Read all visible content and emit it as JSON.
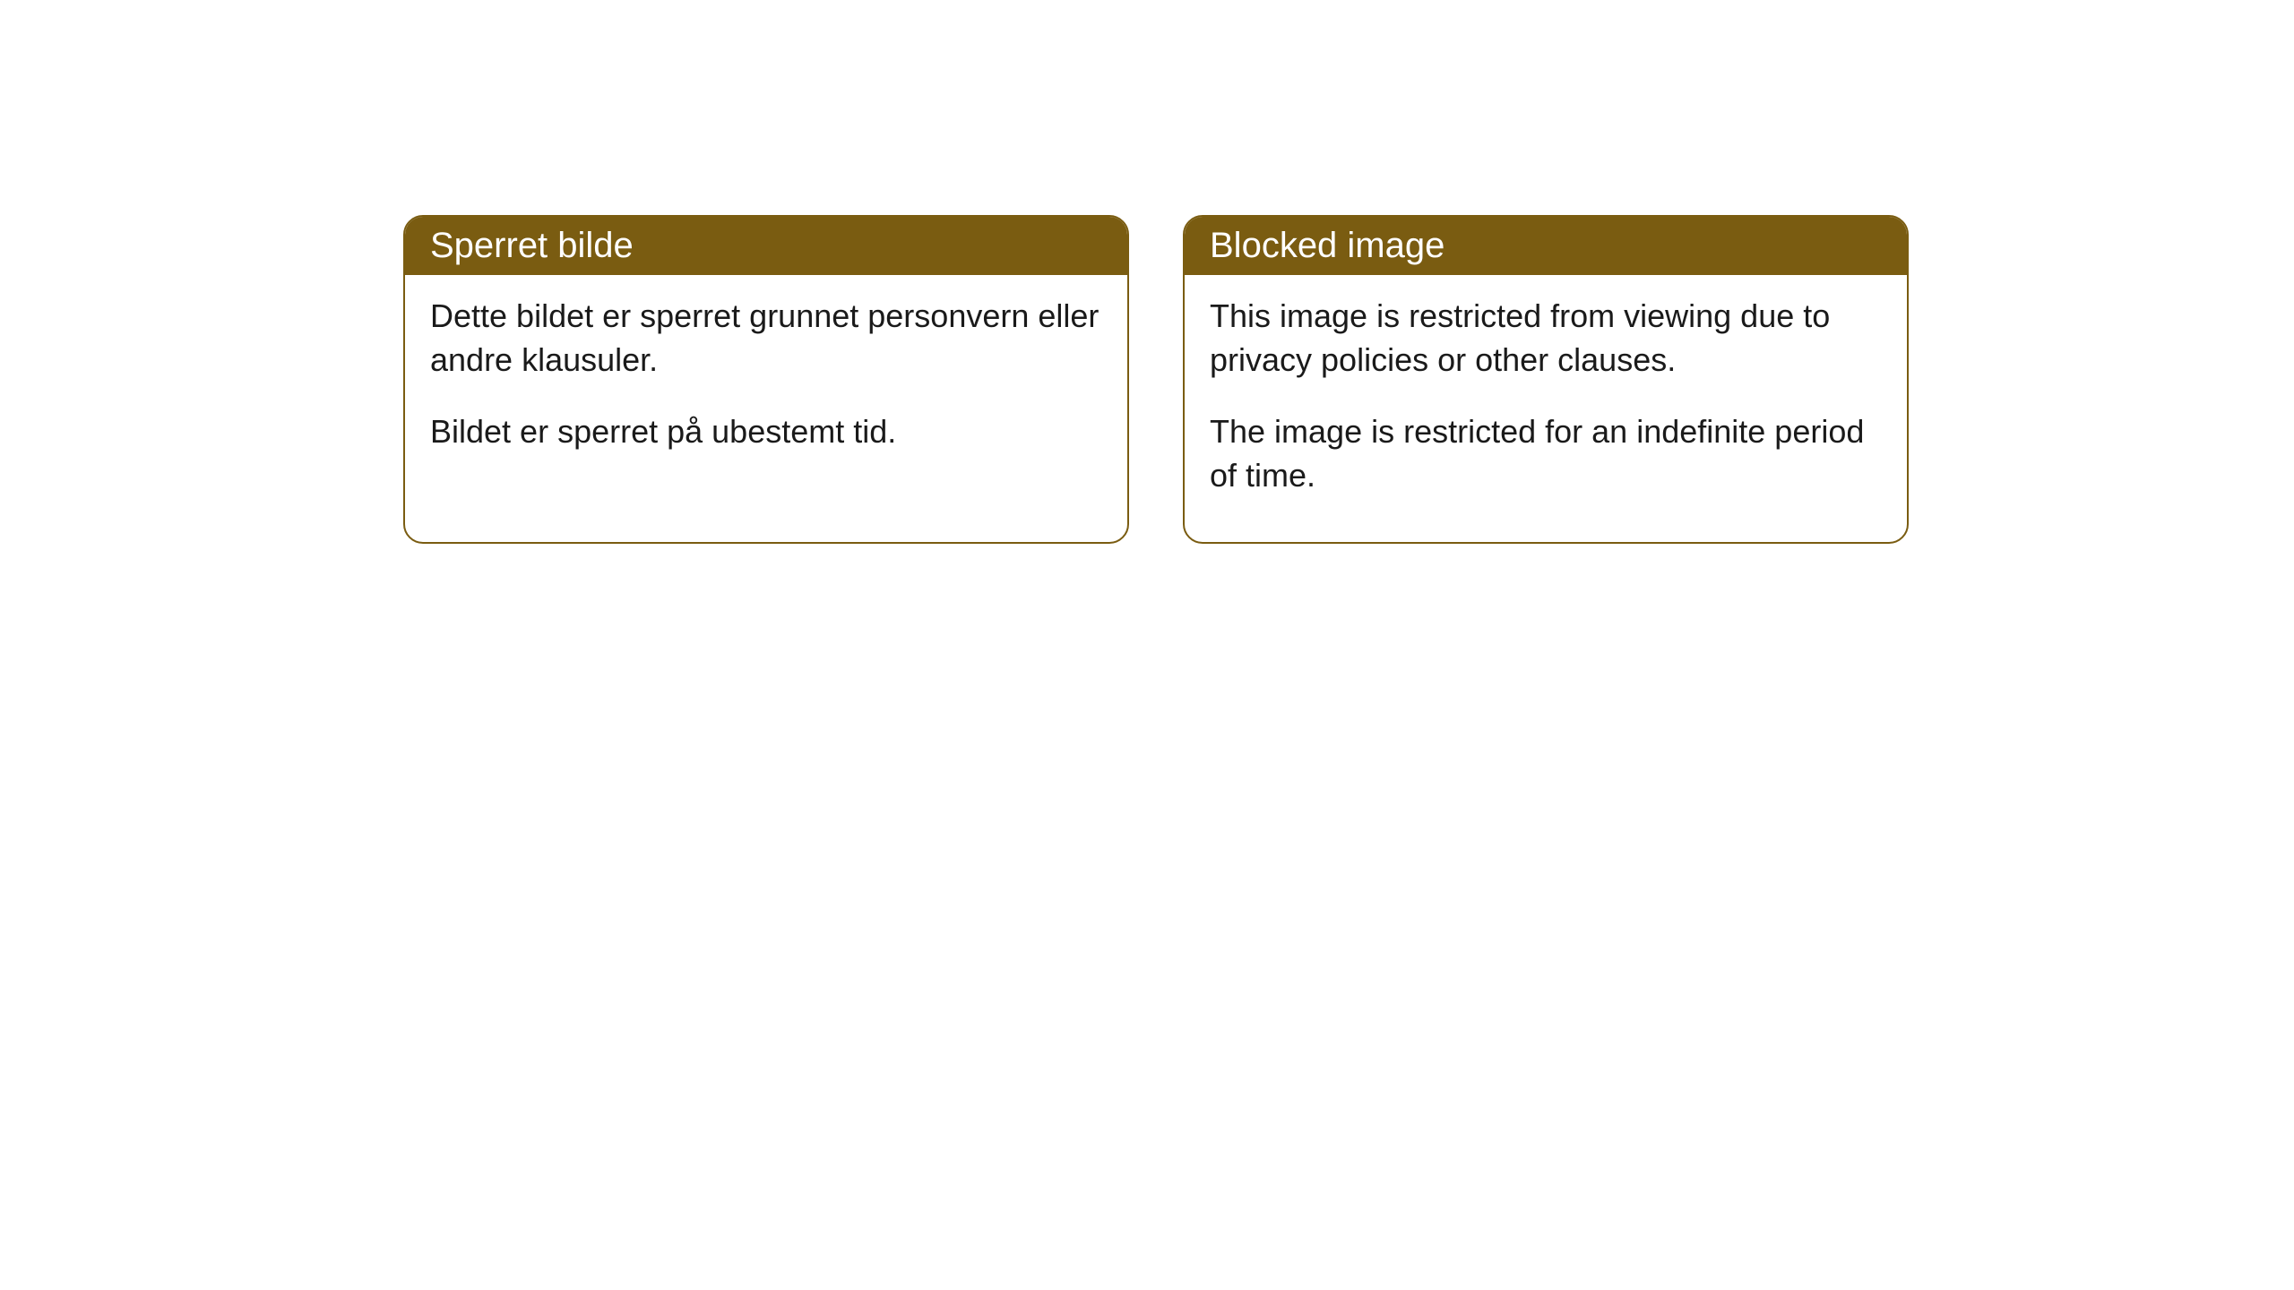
{
  "cards": [
    {
      "title": "Sperret bilde",
      "paragraph1": "Dette bildet er sperret grunnet personvern eller andre klausuler.",
      "paragraph2": "Bildet er sperret på ubestemt tid."
    },
    {
      "title": "Blocked image",
      "paragraph1": "This image is restricted from viewing due to privacy policies or other clauses.",
      "paragraph2": "The image is restricted for an indefinite period of time."
    }
  ],
  "style": {
    "header_background_color": "#7a5c11",
    "header_text_color": "#ffffff",
    "border_color": "#7a5c11",
    "body_background_color": "#ffffff",
    "body_text_color": "#1a1a1a",
    "border_radius": 22,
    "title_fontsize": 40,
    "body_fontsize": 36
  }
}
